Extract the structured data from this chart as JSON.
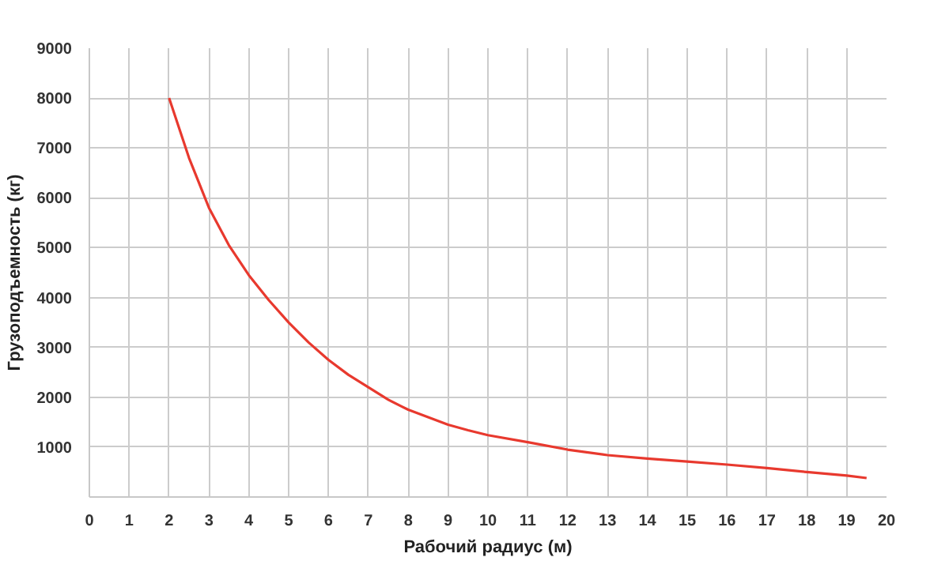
{
  "chart_data": {
    "type": "line",
    "xlabel": "Рабочий радиус (м)",
    "ylabel": "Грузоподъемность (кг)",
    "series": [
      {
        "color": "#e8392e",
        "x": [
          2,
          2.5,
          3,
          3.5,
          4,
          4.5,
          5,
          5.5,
          6,
          6.5,
          7,
          7.5,
          8,
          8.5,
          9,
          9.5,
          10,
          11,
          12,
          13,
          14,
          15,
          16,
          17,
          18,
          19,
          19.5
        ],
        "values": [
          8000,
          6800,
          5800,
          5050,
          4450,
          3950,
          3500,
          3100,
          2750,
          2450,
          2200,
          1950,
          1750,
          1600,
          1450,
          1340,
          1240,
          1100,
          950,
          840,
          770,
          710,
          650,
          580,
          500,
          430,
          380
        ]
      }
    ],
    "xlim": [
      0,
      20
    ],
    "ylim": [
      0,
      9000
    ],
    "xticks": [
      0,
      1,
      2,
      3,
      4,
      5,
      6,
      7,
      8,
      9,
      10,
      11,
      12,
      13,
      14,
      15,
      16,
      17,
      18,
      19,
      20
    ],
    "yticks": [
      {
        "value": 0,
        "label": null
      },
      1000,
      2000,
      3000,
      4000,
      5000,
      6000,
      7000,
      8000,
      9000
    ],
    "grid": true,
    "marker": "none",
    "line_style": "solid"
  }
}
